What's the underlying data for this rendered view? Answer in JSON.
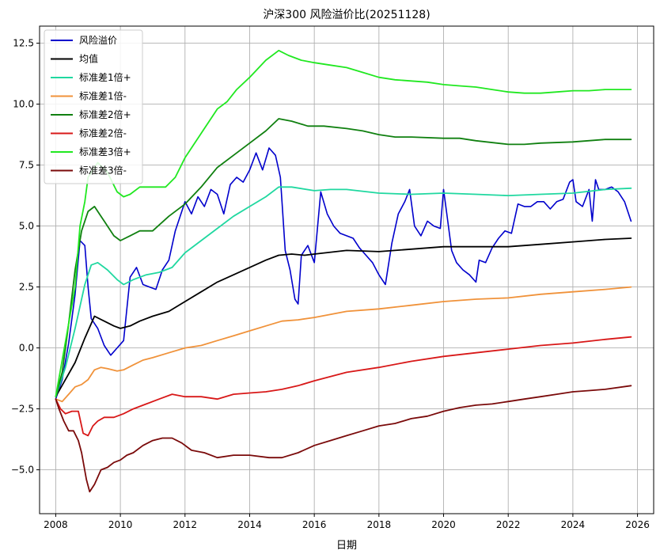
{
  "chart_data": {
    "type": "line",
    "title": "沪深300 风险溢价比(20251128)",
    "xlabel": "日期",
    "ylabel": "",
    "xlim": [
      2007.5,
      2026.5
    ],
    "ylim": [
      -6.8,
      13.2
    ],
    "x_ticks": [
      2008,
      2010,
      2012,
      2014,
      2016,
      2018,
      2020,
      2022,
      2024,
      2026
    ],
    "y_ticks": [
      -5.0,
      -2.5,
      0.0,
      2.5,
      5.0,
      7.5,
      10.0,
      12.5
    ],
    "y_tick_labels": [
      "−5.0",
      "−2.5",
      "0.0",
      "2.5",
      "5.0",
      "7.5",
      "10.0",
      "12.5"
    ],
    "grid": true,
    "legend_position": "top-left",
    "series": [
      {
        "name": "风险溢价",
        "color": "#0000cc",
        "x": [
          2008.0,
          2008.2,
          2008.4,
          2008.6,
          2008.75,
          2008.9,
          2009.0,
          2009.1,
          2009.3,
          2009.5,
          2009.7,
          2009.9,
          2010.1,
          2010.3,
          2010.5,
          2010.7,
          2010.9,
          2011.1,
          2011.3,
          2011.5,
          2011.7,
          2011.9,
          2012.0,
          2012.2,
          2012.4,
          2012.6,
          2012.8,
          2013.0,
          2013.2,
          2013.4,
          2013.6,
          2013.8,
          2014.0,
          2014.2,
          2014.4,
          2014.6,
          2014.8,
          2014.95,
          2015.1,
          2015.25,
          2015.4,
          2015.5,
          2015.6,
          2015.8,
          2016.0,
          2016.2,
          2016.4,
          2016.6,
          2016.8,
          2017.0,
          2017.2,
          2017.4,
          2017.6,
          2017.8,
          2018.0,
          2018.2,
          2018.4,
          2018.6,
          2018.8,
          2018.95,
          2019.1,
          2019.3,
          2019.5,
          2019.7,
          2019.9,
          2020.0,
          2020.1,
          2020.25,
          2020.4,
          2020.6,
          2020.8,
          2021.0,
          2021.1,
          2021.3,
          2021.5,
          2021.7,
          2021.9,
          2022.1,
          2022.3,
          2022.5,
          2022.7,
          2022.9,
          2023.1,
          2023.3,
          2023.5,
          2023.7,
          2023.9,
          2024.0,
          2024.1,
          2024.3,
          2024.5,
          2024.6,
          2024.7,
          2024.8,
          2025.0,
          2025.2,
          2025.4,
          2025.6,
          2025.8
        ],
        "y": [
          -2.1,
          -1.3,
          0.2,
          2.2,
          4.4,
          4.2,
          2.5,
          1.2,
          0.8,
          0.1,
          -0.3,
          0.0,
          0.3,
          2.9,
          3.3,
          2.6,
          2.5,
          2.4,
          3.2,
          3.6,
          4.8,
          5.6,
          6.0,
          5.5,
          6.2,
          5.8,
          6.5,
          6.3,
          5.5,
          6.7,
          7.0,
          6.8,
          7.3,
          8.0,
          7.3,
          8.2,
          7.9,
          7.0,
          4.0,
          3.2,
          2.0,
          1.8,
          3.8,
          4.2,
          3.5,
          6.4,
          5.5,
          5.0,
          4.7,
          4.6,
          4.5,
          4.1,
          3.8,
          3.5,
          3.0,
          2.6,
          4.3,
          5.5,
          6.0,
          6.5,
          5.0,
          4.6,
          5.2,
          5.0,
          4.9,
          6.5,
          5.5,
          4.0,
          3.5,
          3.2,
          3.0,
          2.7,
          3.6,
          3.5,
          4.1,
          4.5,
          4.8,
          4.7,
          5.9,
          5.8,
          5.8,
          6.0,
          6.0,
          5.7,
          6.0,
          6.1,
          6.8,
          6.9,
          6.0,
          5.8,
          6.5,
          5.2,
          6.9,
          6.5,
          6.5,
          6.6,
          6.4,
          6.0,
          5.2
        ]
      },
      {
        "name": "均值",
        "color": "#000000",
        "x": [
          2008.0,
          2008.3,
          2008.6,
          2008.9,
          2009.2,
          2009.5,
          2009.8,
          2010.0,
          2010.3,
          2010.6,
          2011.0,
          2011.5,
          2012.0,
          2012.5,
          2013.0,
          2013.5,
          2014.0,
          2014.5,
          2014.9,
          2015.3,
          2015.7,
          2016.0,
          2017.0,
          2018.0,
          2019.0,
          2020.0,
          2021.0,
          2022.0,
          2023.0,
          2024.0,
          2025.0,
          2025.8
        ],
        "y": [
          -2.0,
          -1.3,
          -0.6,
          0.4,
          1.3,
          1.1,
          0.9,
          0.8,
          0.9,
          1.1,
          1.3,
          1.5,
          1.9,
          2.3,
          2.7,
          3.0,
          3.3,
          3.6,
          3.8,
          3.85,
          3.8,
          3.85,
          4.0,
          3.95,
          4.05,
          4.15,
          4.15,
          4.15,
          4.25,
          4.35,
          4.45,
          4.5
        ]
      },
      {
        "name": "标准差1倍+",
        "color": "#20d8a0",
        "x": [
          2008.0,
          2008.3,
          2008.6,
          2008.9,
          2009.1,
          2009.3,
          2009.6,
          2009.9,
          2010.1,
          2010.4,
          2010.8,
          2011.2,
          2011.6,
          2012.0,
          2012.5,
          2013.0,
          2013.5,
          2014.0,
          2014.5,
          2014.9,
          2015.3,
          2016.0,
          2016.5,
          2017.0,
          2018.0,
          2019.0,
          2020.0,
          2021.0,
          2022.0,
          2023.0,
          2024.0,
          2025.0,
          2025.8
        ],
        "y": [
          -2.0,
          -0.8,
          0.8,
          2.6,
          3.4,
          3.5,
          3.2,
          2.8,
          2.6,
          2.8,
          3.0,
          3.1,
          3.3,
          3.9,
          4.4,
          4.9,
          5.4,
          5.8,
          6.2,
          6.6,
          6.6,
          6.45,
          6.5,
          6.5,
          6.35,
          6.3,
          6.35,
          6.3,
          6.25,
          6.3,
          6.35,
          6.5,
          6.55
        ]
      },
      {
        "name": "标准差1倍-",
        "color": "#f0923a",
        "x": [
          2008.0,
          2008.2,
          2008.4,
          2008.6,
          2008.8,
          2009.0,
          2009.2,
          2009.4,
          2009.6,
          2009.9,
          2010.1,
          2010.4,
          2010.7,
          2011.0,
          2011.5,
          2012.0,
          2012.5,
          2013.0,
          2013.5,
          2014.0,
          2014.5,
          2015.0,
          2015.5,
          2016.0,
          2017.0,
          2018.0,
          2019.0,
          2020.0,
          2021.0,
          2022.0,
          2023.0,
          2024.0,
          2025.0,
          2025.8
        ],
        "y": [
          -2.1,
          -2.2,
          -1.9,
          -1.6,
          -1.5,
          -1.3,
          -0.9,
          -0.8,
          -0.85,
          -0.95,
          -0.9,
          -0.7,
          -0.5,
          -0.4,
          -0.2,
          0.0,
          0.1,
          0.3,
          0.5,
          0.7,
          0.9,
          1.1,
          1.15,
          1.25,
          1.5,
          1.6,
          1.75,
          1.9,
          2.0,
          2.05,
          2.2,
          2.3,
          2.4,
          2.5
        ]
      },
      {
        "name": "标准差2倍+",
        "color": "#108010",
        "x": [
          2008.0,
          2008.2,
          2008.4,
          2008.6,
          2008.8,
          2009.0,
          2009.2,
          2009.5,
          2009.8,
          2010.0,
          2010.3,
          2010.6,
          2011.0,
          2011.5,
          2012.0,
          2012.5,
          2013.0,
          2013.5,
          2014.0,
          2014.5,
          2014.9,
          2015.3,
          2015.8,
          2016.3,
          2017.0,
          2017.5,
          2018.0,
          2018.5,
          2019.0,
          2020.0,
          2020.5,
          2021.0,
          2022.0,
          2022.5,
          2023.0,
          2024.0,
          2025.0,
          2025.8
        ],
        "y": [
          -2.0,
          -1.0,
          1.0,
          3.2,
          4.8,
          5.6,
          5.8,
          5.2,
          4.6,
          4.4,
          4.6,
          4.8,
          4.8,
          5.4,
          5.9,
          6.6,
          7.4,
          7.9,
          8.4,
          8.9,
          9.4,
          9.3,
          9.1,
          9.1,
          9.0,
          8.9,
          8.75,
          8.65,
          8.65,
          8.6,
          8.6,
          8.5,
          8.35,
          8.35,
          8.4,
          8.45,
          8.55,
          8.55
        ]
      },
      {
        "name": "标准差2倍-",
        "color": "#d81818",
        "x": [
          2008.0,
          2008.15,
          2008.3,
          2008.5,
          2008.7,
          2008.85,
          2009.0,
          2009.15,
          2009.3,
          2009.5,
          2009.8,
          2010.1,
          2010.4,
          2010.8,
          2011.2,
          2011.6,
          2012.0,
          2012.5,
          2013.0,
          2013.5,
          2014.0,
          2014.5,
          2015.0,
          2015.5,
          2016.0,
          2017.0,
          2018.0,
          2019.0,
          2020.0,
          2021.0,
          2022.0,
          2023.0,
          2024.0,
          2025.0,
          2025.8
        ],
        "y": [
          -2.1,
          -2.5,
          -2.7,
          -2.6,
          -2.6,
          -3.5,
          -3.6,
          -3.2,
          -3.0,
          -2.85,
          -2.85,
          -2.7,
          -2.5,
          -2.3,
          -2.1,
          -1.9,
          -2.0,
          -2.0,
          -2.1,
          -1.9,
          -1.85,
          -1.8,
          -1.7,
          -1.55,
          -1.35,
          -1.0,
          -0.8,
          -0.55,
          -0.35,
          -0.2,
          -0.05,
          0.1,
          0.2,
          0.35,
          0.45
        ]
      },
      {
        "name": "标准差3倍+",
        "color": "#20e820",
        "x": [
          2008.0,
          2008.2,
          2008.4,
          2008.6,
          2008.75,
          2008.9,
          2009.0,
          2009.3,
          2009.6,
          2009.9,
          2010.1,
          2010.3,
          2010.6,
          2011.0,
          2011.4,
          2011.7,
          2012.0,
          2012.5,
          2013.0,
          2013.3,
          2013.6,
          2014.0,
          2014.5,
          2014.9,
          2015.2,
          2015.6,
          2016.0,
          2016.5,
          2017.0,
          2017.5,
          2018.0,
          2018.5,
          2019.0,
          2019.5,
          2020.0,
          2020.5,
          2021.0,
          2021.5,
          2022.0,
          2022.5,
          2023.0,
          2023.5,
          2024.0,
          2024.5,
          2025.0,
          2025.5,
          2025.8
        ],
        "y": [
          -2.0,
          -0.5,
          1.0,
          2.5,
          5.0,
          6.0,
          7.0,
          7.6,
          7.2,
          6.4,
          6.2,
          6.3,
          6.6,
          6.6,
          6.6,
          7.0,
          7.8,
          8.8,
          9.8,
          10.1,
          10.6,
          11.1,
          11.8,
          12.2,
          12.0,
          11.8,
          11.7,
          11.6,
          11.5,
          11.3,
          11.1,
          11.0,
          10.95,
          10.9,
          10.8,
          10.75,
          10.7,
          10.6,
          10.5,
          10.45,
          10.45,
          10.5,
          10.55,
          10.55,
          10.6,
          10.6,
          10.6
        ]
      },
      {
        "name": "标准差3倍-",
        "color": "#7a0a0a",
        "x": [
          2008.0,
          2008.1,
          2008.25,
          2008.4,
          2008.55,
          2008.7,
          2008.8,
          2008.95,
          2009.05,
          2009.2,
          2009.4,
          2009.6,
          2009.8,
          2010.0,
          2010.2,
          2010.4,
          2010.7,
          2011.0,
          2011.3,
          2011.6,
          2011.9,
          2012.2,
          2012.6,
          2013.0,
          2013.5,
          2014.0,
          2014.6,
          2015.0,
          2015.5,
          2016.0,
          2016.5,
          2017.0,
          2017.5,
          2018.0,
          2018.5,
          2019.0,
          2019.5,
          2020.0,
          2020.5,
          2021.0,
          2021.5,
          2022.0,
          2022.5,
          2023.0,
          2023.5,
          2024.0,
          2024.5,
          2025.0,
          2025.8
        ],
        "y": [
          -2.1,
          -2.5,
          -3.0,
          -3.4,
          -3.4,
          -3.8,
          -4.3,
          -5.4,
          -5.9,
          -5.6,
          -5.0,
          -4.9,
          -4.7,
          -4.6,
          -4.4,
          -4.3,
          -4.0,
          -3.8,
          -3.7,
          -3.7,
          -3.9,
          -4.2,
          -4.3,
          -4.5,
          -4.4,
          -4.4,
          -4.5,
          -4.5,
          -4.3,
          -4.0,
          -3.8,
          -3.6,
          -3.4,
          -3.2,
          -3.1,
          -2.9,
          -2.8,
          -2.6,
          -2.45,
          -2.35,
          -2.3,
          -2.2,
          -2.1,
          -2.0,
          -1.9,
          -1.8,
          -1.75,
          -1.7,
          -1.55
        ]
      }
    ]
  }
}
